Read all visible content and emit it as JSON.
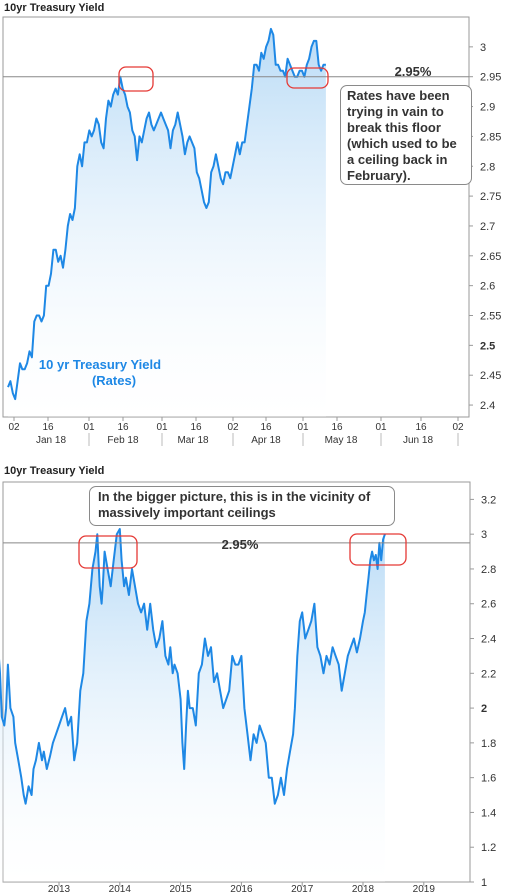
{
  "chart_data": [
    {
      "type": "area",
      "title": "10yr Treasury Yield",
      "ylim": [
        2.38,
        3.05
      ],
      "yticks": [
        2.4,
        2.45,
        2.5,
        2.55,
        2.6,
        2.65,
        2.7,
        2.75,
        2.8,
        2.85,
        2.9,
        2.95,
        3
      ],
      "ytick_labels": [
        "2.4",
        "2.45",
        "2.5",
        "2.55",
        "2.6",
        "2.65",
        "2.7",
        "2.75",
        "2.8",
        "2.85",
        "2.9",
        "2.95",
        "3"
      ],
      "xticks_days": [
        "02",
        "16",
        "01",
        "16",
        "01",
        "16",
        "02",
        "16",
        "01",
        "16",
        "01",
        "16",
        "02"
      ],
      "xticks_months": [
        "Jan 18",
        "Feb 18",
        "Mar 18",
        "Apr 18",
        "May 18",
        "Jun 18"
      ],
      "grid": false,
      "series": [
        {
          "name": "10 yr Treasury Yield",
          "name_line2": "(Rates)",
          "color": "#1e88e5",
          "fill_top": "#c5e1f7",
          "x_days": [
            0,
            1,
            2,
            3,
            4,
            5,
            6,
            7,
            8,
            9,
            10,
            11,
            12,
            13,
            14,
            15,
            16,
            17,
            18,
            19,
            20,
            21,
            22,
            23,
            24,
            25,
            26,
            27,
            28,
            29,
            30,
            31,
            32,
            33,
            34,
            35,
            36,
            37,
            38,
            39,
            40,
            41,
            42,
            43,
            44,
            45,
            46,
            47,
            48,
            49,
            50,
            51,
            52,
            53,
            54,
            55,
            56,
            57,
            58,
            59,
            60,
            61,
            62,
            63,
            64,
            65,
            66,
            67,
            68,
            69,
            70,
            71,
            72,
            73,
            74,
            75,
            76,
            77,
            78,
            79,
            80,
            81,
            82,
            83,
            84,
            85,
            86,
            87,
            88,
            89,
            90,
            91,
            92,
            93,
            94,
            95,
            96,
            97,
            98,
            99,
            100,
            101,
            102,
            103,
            104,
            105,
            106,
            107,
            108,
            109,
            110,
            111,
            112,
            113,
            114,
            115,
            116,
            117,
            118,
            119,
            120,
            121,
            122,
            123,
            124,
            125,
            126,
            127,
            128,
            129,
            130,
            131,
            132,
            133
          ],
          "values": [
            2.43,
            2.44,
            2.42,
            2.41,
            2.44,
            2.47,
            2.46,
            2.46,
            2.47,
            2.49,
            2.48,
            2.54,
            2.55,
            2.55,
            2.54,
            2.55,
            2.6,
            2.6,
            2.62,
            2.66,
            2.66,
            2.64,
            2.65,
            2.63,
            2.66,
            2.7,
            2.72,
            2.71,
            2.73,
            2.8,
            2.82,
            2.8,
            2.84,
            2.84,
            2.86,
            2.85,
            2.86,
            2.88,
            2.87,
            2.84,
            2.83,
            2.88,
            2.91,
            2.9,
            2.92,
            2.93,
            2.92,
            2.95,
            2.93,
            2.92,
            2.9,
            2.89,
            2.86,
            2.85,
            2.81,
            2.85,
            2.84,
            2.86,
            2.88,
            2.89,
            2.87,
            2.86,
            2.87,
            2.88,
            2.89,
            2.88,
            2.87,
            2.86,
            2.83,
            2.86,
            2.87,
            2.89,
            2.87,
            2.85,
            2.82,
            2.84,
            2.85,
            2.84,
            2.83,
            2.79,
            2.78,
            2.76,
            2.74,
            2.73,
            2.74,
            2.79,
            2.8,
            2.82,
            2.8,
            2.78,
            2.77,
            2.79,
            2.79,
            2.78,
            2.8,
            2.82,
            2.84,
            2.82,
            2.84,
            2.84,
            2.87,
            2.9,
            2.93,
            2.97,
            2.97,
            2.96,
            2.99,
            2.98,
            3.0,
            3.01,
            3.03,
            3.02,
            2.97,
            2.97,
            2.96,
            2.96,
            2.95,
            2.98,
            2.97,
            2.96,
            2.95,
            2.95,
            2.96,
            2.96,
            2.95,
            2.97,
            2.98,
            3.0,
            3.01,
            3.01,
            2.97,
            2.96,
            2.97,
            2.97
          ]
        }
      ],
      "reference_line": {
        "value": 2.95,
        "label": "2.95%"
      },
      "callout": "Rates have been trying in vain to break this floor (which used to be a ceiling back in February)."
    },
    {
      "type": "area",
      "title": "10yr Treasury Yield",
      "ylim": [
        1.0,
        3.3
      ],
      "yticks": [
        1,
        1.2,
        1.4,
        1.6,
        1.8,
        2,
        2.2,
        2.4,
        2.6,
        2.8,
        3,
        3.2
      ],
      "ytick_labels": [
        "1",
        "1.2",
        "1.4",
        "1.6",
        "1.8",
        "2",
        "2.2",
        "2.4",
        "2.6",
        "2.8",
        "3",
        "3.2"
      ],
      "xticks_years": [
        "2013",
        "2014",
        "2015",
        "2016",
        "2017",
        "2018",
        "2019"
      ],
      "grid": false,
      "series": [
        {
          "name": "",
          "color": "#1e88e5",
          "fill_top": "#c5e1f7",
          "x": [
            2012.0,
            2012.03,
            2012.06,
            2012.1,
            2012.13,
            2012.16,
            2012.2,
            2012.25,
            2012.28,
            2012.33,
            2012.38,
            2012.42,
            2012.45,
            2012.5,
            2012.55,
            2012.58,
            2012.62,
            2012.67,
            2012.72,
            2012.75,
            2012.8,
            2012.85,
            2012.9,
            2012.95,
            2013.0,
            2013.05,
            2013.1,
            2013.15,
            2013.2,
            2013.25,
            2013.3,
            2013.35,
            2013.4,
            2013.45,
            2013.5,
            2013.55,
            2013.6,
            2013.63,
            2013.67,
            2013.7,
            2013.72,
            2013.75,
            2013.8,
            2013.85,
            2013.9,
            2013.95,
            2014.0,
            2014.03,
            2014.07,
            2014.1,
            2014.15,
            2014.2,
            2014.25,
            2014.3,
            2014.35,
            2014.4,
            2014.45,
            2014.5,
            2014.55,
            2014.6,
            2014.65,
            2014.7,
            2014.75,
            2014.8,
            2014.83,
            2014.87,
            2014.9,
            2014.95,
            2015.0,
            2015.03,
            2015.06,
            2015.09,
            2015.12,
            2015.15,
            2015.2,
            2015.25,
            2015.3,
            2015.35,
            2015.4,
            2015.45,
            2015.5,
            2015.55,
            2015.6,
            2015.65,
            2015.7,
            2015.75,
            2015.8,
            2015.85,
            2015.9,
            2015.95,
            2016.0,
            2016.05,
            2016.1,
            2016.15,
            2016.2,
            2016.25,
            2016.3,
            2016.35,
            2016.4,
            2016.45,
            2016.5,
            2016.55,
            2016.6,
            2016.65,
            2016.7,
            2016.75,
            2016.8,
            2016.85,
            2016.88,
            2016.92,
            2016.96,
            2017.0,
            2017.05,
            2017.1,
            2017.15,
            2017.2,
            2017.25,
            2017.3,
            2017.35,
            2017.4,
            2017.45,
            2017.5,
            2017.55,
            2017.6,
            2017.65,
            2017.7,
            2017.75,
            2017.8,
            2017.85,
            2017.9,
            2017.95,
            2018.0,
            2018.03,
            2018.06,
            2018.09,
            2018.12,
            2018.15,
            2018.18,
            2018.21,
            2018.24,
            2018.27,
            2018.3,
            2018.33,
            2018.36
          ],
          "values": [
            2.35,
            2.2,
            1.95,
            1.9,
            2.0,
            2.25,
            2.0,
            1.95,
            1.8,
            1.7,
            1.6,
            1.5,
            1.45,
            1.55,
            1.5,
            1.65,
            1.7,
            1.8,
            1.7,
            1.75,
            1.65,
            1.72,
            1.8,
            1.85,
            1.9,
            1.95,
            2.0,
            1.9,
            1.95,
            1.7,
            1.8,
            2.1,
            2.2,
            2.5,
            2.6,
            2.8,
            2.9,
            3.0,
            2.7,
            2.6,
            2.7,
            2.9,
            2.8,
            2.7,
            2.85,
            3.0,
            3.03,
            2.85,
            2.7,
            2.75,
            2.65,
            2.8,
            2.7,
            2.6,
            2.55,
            2.6,
            2.45,
            2.6,
            2.45,
            2.35,
            2.4,
            2.5,
            2.3,
            2.25,
            2.35,
            2.2,
            2.25,
            2.2,
            2.05,
            1.8,
            1.65,
            1.9,
            2.1,
            2.0,
            2.0,
            1.9,
            2.2,
            2.25,
            2.4,
            2.3,
            2.35,
            2.15,
            2.2,
            2.1,
            2.0,
            2.05,
            2.1,
            2.3,
            2.25,
            2.25,
            2.3,
            2.0,
            1.85,
            1.7,
            1.85,
            1.8,
            1.9,
            1.85,
            1.8,
            1.6,
            1.6,
            1.45,
            1.5,
            1.6,
            1.5,
            1.65,
            1.75,
            1.85,
            2.0,
            2.3,
            2.5,
            2.55,
            2.4,
            2.45,
            2.5,
            2.6,
            2.35,
            2.3,
            2.2,
            2.3,
            2.25,
            2.35,
            2.3,
            2.25,
            2.1,
            2.2,
            2.3,
            2.35,
            2.4,
            2.32,
            2.4,
            2.5,
            2.55,
            2.65,
            2.75,
            2.85,
            2.9,
            2.85,
            2.88,
            2.8,
            2.95,
            2.85,
            2.97,
            3.0
          ]
        }
      ],
      "reference_line": {
        "value": 2.95,
        "label": "2.95%"
      },
      "callout": "In the bigger picture, this is in the vicinity of massively important ceilings"
    }
  ]
}
